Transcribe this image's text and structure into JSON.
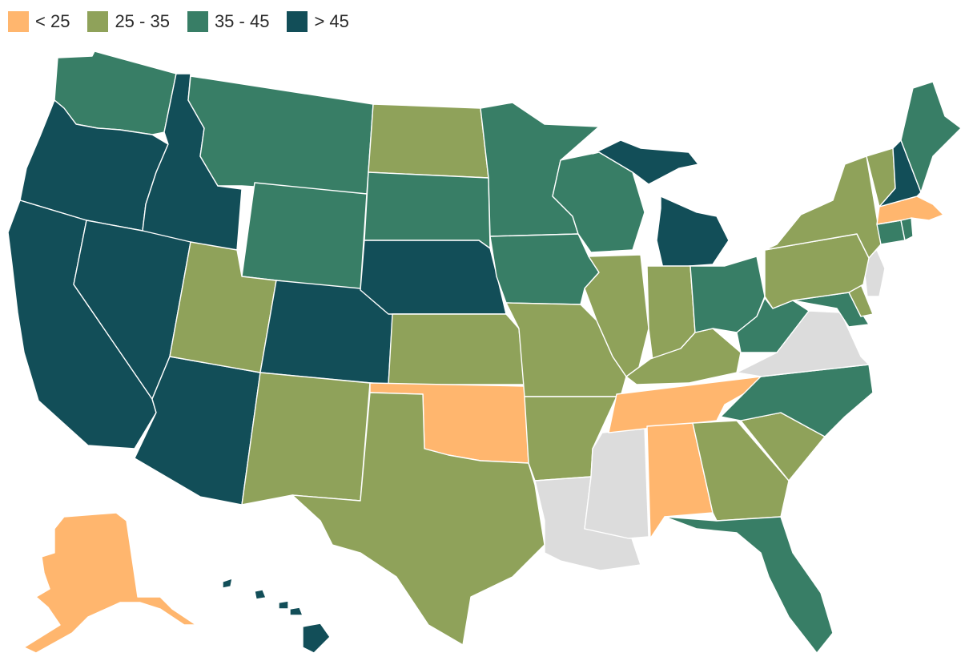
{
  "legend": [
    {
      "label": "< 25",
      "color": "#ffb66e"
    },
    {
      "label": "25 - 35",
      "color": "#8fa25a"
    },
    {
      "label": "35 - 45",
      "color": "#387e66"
    },
    {
      "label": "> 45",
      "color": "#124e58"
    }
  ],
  "no_data_color": "#dcdcdc",
  "states": [
    {
      "id": "WA",
      "bin": 2
    },
    {
      "id": "OR",
      "bin": 3
    },
    {
      "id": "CA",
      "bin": 3
    },
    {
      "id": "ID",
      "bin": 3
    },
    {
      "id": "NV",
      "bin": 3
    },
    {
      "id": "AZ",
      "bin": 3
    },
    {
      "id": "MT",
      "bin": 2
    },
    {
      "id": "WY",
      "bin": 2
    },
    {
      "id": "UT",
      "bin": 1
    },
    {
      "id": "CO",
      "bin": 3
    },
    {
      "id": "NM",
      "bin": 1
    },
    {
      "id": "ND",
      "bin": 1
    },
    {
      "id": "SD",
      "bin": 2
    },
    {
      "id": "NE",
      "bin": 3
    },
    {
      "id": "KS",
      "bin": 1
    },
    {
      "id": "OK",
      "bin": 0
    },
    {
      "id": "TX",
      "bin": 1
    },
    {
      "id": "MN",
      "bin": 2
    },
    {
      "id": "IA",
      "bin": 2
    },
    {
      "id": "MO",
      "bin": 1
    },
    {
      "id": "AR",
      "bin": 1
    },
    {
      "id": "LA",
      "bin": null
    },
    {
      "id": "WI",
      "bin": 2
    },
    {
      "id": "IL",
      "bin": 1
    },
    {
      "id": "MS",
      "bin": null
    },
    {
      "id": "MI",
      "bin": 3
    },
    {
      "id": "IN",
      "bin": 1
    },
    {
      "id": "KY",
      "bin": 1
    },
    {
      "id": "TN",
      "bin": 0
    },
    {
      "id": "AL",
      "bin": 0
    },
    {
      "id": "OH",
      "bin": 2
    },
    {
      "id": "GA",
      "bin": 1
    },
    {
      "id": "FL",
      "bin": 2
    },
    {
      "id": "SC",
      "bin": 1
    },
    {
      "id": "NC",
      "bin": 2
    },
    {
      "id": "VA",
      "bin": null
    },
    {
      "id": "WV",
      "bin": 2
    },
    {
      "id": "MD",
      "bin": 2
    },
    {
      "id": "DE",
      "bin": 1
    },
    {
      "id": "NJ",
      "bin": null
    },
    {
      "id": "PA",
      "bin": 1
    },
    {
      "id": "NY",
      "bin": 1
    },
    {
      "id": "CT",
      "bin": 2
    },
    {
      "id": "RI",
      "bin": 2
    },
    {
      "id": "MA",
      "bin": 0
    },
    {
      "id": "VT",
      "bin": 1
    },
    {
      "id": "NH",
      "bin": 3
    },
    {
      "id": "ME",
      "bin": 2
    },
    {
      "id": "AK",
      "bin": 0
    },
    {
      "id": "HI",
      "bin": 3
    }
  ]
}
